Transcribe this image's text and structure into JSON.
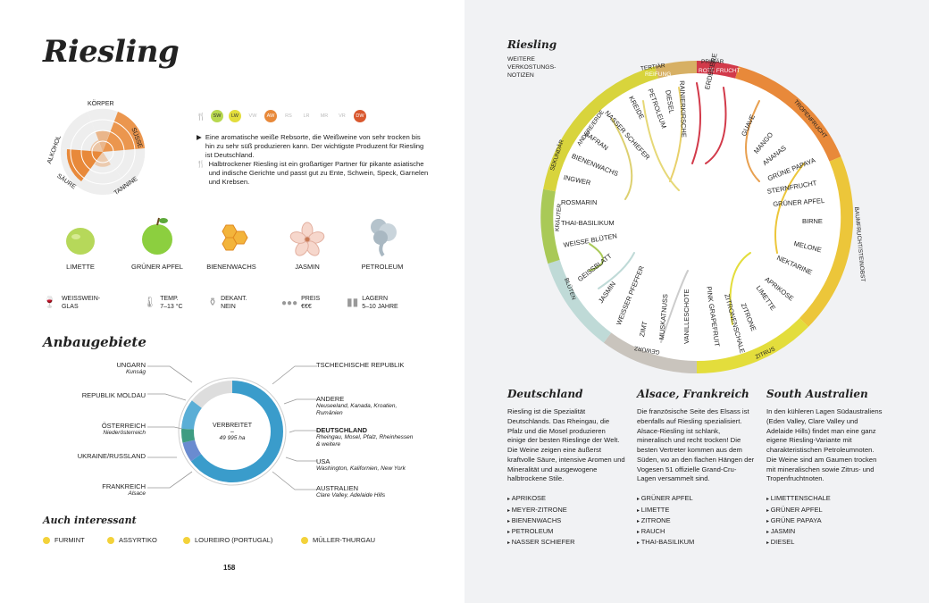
{
  "title": "Riesling",
  "profile": {
    "axes": [
      "KÖRPER",
      "SÜSSE",
      "TANNINE",
      "SÄURE",
      "ALKOHOL"
    ]
  },
  "food_badges": [
    "SW",
    "LW",
    "VW",
    "AW",
    "RS",
    "LR",
    "MR",
    "VR",
    "DW"
  ],
  "description": {
    "p1": "Eine aromatische weiße Rebsorte, die Weißweine von sehr trocken bis hin zu sehr süß produzieren kann. Der wichtigste Produzent für Riesling ist Deutschland.",
    "p2": "Halbtrockener Riesling ist ein großartiger Partner für pikante asiatische und indische Gerichte und passt gut zu Ente, Schwein, Speck, Garnelen und Krebsen."
  },
  "aromas": [
    "LIMETTE",
    "GRÜNER APFEL",
    "BIENENWACHS",
    "JASMIN",
    "PETROLEUM"
  ],
  "info": {
    "glass": "WEISSWEIN-GLAS",
    "temp_label": "TEMP.",
    "temp_value": "7–13 °C",
    "decant_label": "DEKANT.",
    "decant_value": "NEIN",
    "price_label": "PREIS",
    "price_value": "€€€",
    "storage_label": "LAGERN",
    "storage_value": "5–10 JAHRE"
  },
  "regions_title": "Anbaugebiete",
  "regions_left": [
    {
      "name": "UNGARN",
      "sub": "Kunság"
    },
    {
      "name": "REPUBLIK MOLDAU",
      "sub": ""
    },
    {
      "name": "ÖSTERREICH",
      "sub": "Niederösterreich"
    },
    {
      "name": "UKRAINE/RUSSLAND",
      "sub": ""
    },
    {
      "name": "FRANKREICH",
      "sub": "Alsace"
    }
  ],
  "regions_right": [
    {
      "name": "TSCHECHISCHE REPUBLIK",
      "sub": ""
    },
    {
      "name": "ANDERE",
      "sub": "Neuseeland, Kanada, Kroatien, Rumänien"
    },
    {
      "name": "DEUTSCHLAND",
      "sub": "Rheingau, Mosel, Pfalz, Rheinhessen & weitere"
    },
    {
      "name": "USA",
      "sub": "Washington, Kalifornien, New York"
    },
    {
      "name": "AUSTRALIEN",
      "sub": "Clare Valley, Adelaide Hills"
    }
  ],
  "donut": {
    "label": "VERBREITET",
    "dash": "–",
    "value": "49 995 ha"
  },
  "interesting_title": "Auch interessant",
  "interesting": [
    "FURMINT",
    "ASSYRTIKO",
    "LOUREIRO (PORTUGAL)",
    "MÜLLER-THURGAU"
  ],
  "page_number": "158",
  "wheel": {
    "title": "Riesling",
    "subtitle": "WEITERE VERKOSTUNGS-NOTIZEN",
    "categories": [
      "TERTIÄR",
      "PRIMÄR",
      "SEKUNDÄR"
    ],
    "segments": [
      "REIFUNG",
      "ROTE FRUCHT",
      "TROPENFRUCHT",
      "BAUMFRUCHT/STEINOBST",
      "ZITRUS",
      "GEWÜRZ",
      "BLÜTEN",
      "KRÄUTER",
      "ANDERE/ERDE"
    ],
    "notes": [
      "DIESEL",
      "PETROLEUM",
      "KREIDE",
      "NASSER SCHIEFER",
      "SAFRAN",
      "BIENENWACHS",
      "INGWER",
      "ROSMARIN",
      "THAI-BASILIKUM",
      "WEISSE BLÜTEN",
      "GEISSBLATT",
      "JASMIN",
      "WEISSER PFEFFER",
      "ZIMT",
      "MUSKATNUSS",
      "VANILLESCHOTE",
      "RAINIERKIRSCHE",
      "ERDBEERE",
      "GUAVE",
      "MANGO",
      "ANANAS",
      "GRÜNE PAPAYA",
      "STERNFRUCHT",
      "GRÜNER APFEL",
      "BIRNE",
      "MELONE",
      "NEKTARINE",
      "APRIKOSE",
      "LIMETTE",
      "ZITRONE",
      "ZITRONENSCHALE",
      "PINK GRAPEFRUIT"
    ]
  },
  "region_cols": [
    {
      "title": "Deutschland",
      "text": "Riesling ist die Spezialität Deutschlands. Das Rheingau, die Pfalz und die Mosel produzieren einige der besten Rieslinge der Welt. Die Weine zeigen eine äußerst kraftvolle Säure, intensive Aromen und Mineralität und ausgewogene halbtrockene Stile.",
      "notes": [
        "APRIKOSE",
        "MEYER-ZITRONE",
        "BIENENWACHS",
        "PETROLEUM",
        "NASSER SCHIEFER"
      ]
    },
    {
      "title": "Alsace, Frankreich",
      "text": "Die französische Seite des Elsass ist ebenfalls auf Riesling spezialisiert. Alsace-Riesling ist schlank, mineralisch und recht trocken! Die besten Vertreter kommen aus dem Süden, wo an den flachen Hängen der Vogesen 51 offizielle Grand-Cru-Lagen versammelt sind.",
      "notes": [
        "GRÜNER APFEL",
        "LIMETTE",
        "ZITRONE",
        "RAUCH",
        "THAI-BASILIKUM"
      ]
    },
    {
      "title": "South Australien",
      "text": "In den kühleren Lagen Südaustraliens (Eden Valley, Clare Valley und Adelaide Hills) findet man eine ganz eigene Riesling-Variante mit charakteristischen Petroleumnoten. Die Weine sind am Gaumen trocken mit mineralischen sowie Zitrus- und Tropenfruchtnoten.",
      "notes": [
        "LIMETTENSCHALE",
        "GRÜNER APFEL",
        "GRÜNE PAPAYA",
        "JASMIN",
        "DIESEL"
      ]
    }
  ],
  "colors": {
    "orange": "#e8893a",
    "yellow": "#e3dd3c",
    "green": "#a9c957",
    "blue": "#3a9ccb",
    "red": "#d23a4a"
  }
}
